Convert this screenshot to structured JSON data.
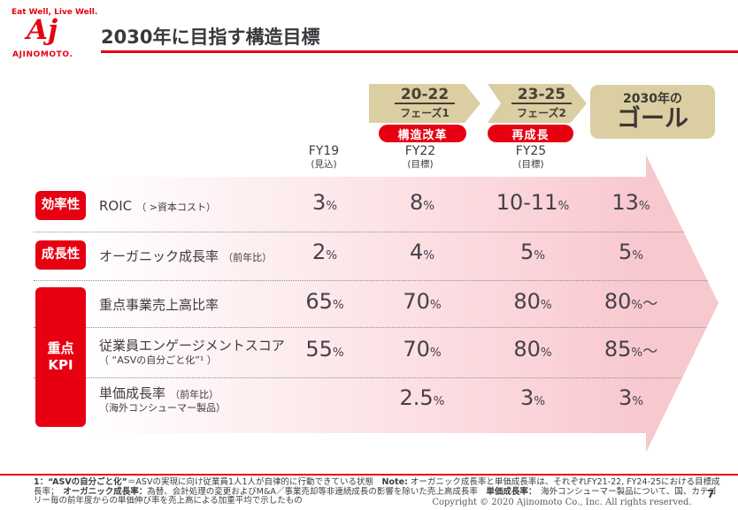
{
  "brand": {
    "tagline": "Eat Well, Live Well.",
    "logo_monogram": "Aj",
    "name": "AJINOMOTO.",
    "color": "#E60012"
  },
  "slide": {
    "title": "2030年に目指す構造目標",
    "page_number": "7"
  },
  "timeline": {
    "phase1": {
      "years": "20-22",
      "name": "フェーズ1",
      "badge": "構造改革"
    },
    "phase2": {
      "years": "23-25",
      "name": "フェーズ2",
      "badge": "再成長"
    },
    "goal": {
      "prefix": "2030年の",
      "label": "ゴール"
    }
  },
  "columns": [
    {
      "fy": "FY19",
      "qualifier": "(見込)"
    },
    {
      "fy": "FY22",
      "qualifier": "(目標)"
    },
    {
      "fy": "FY25",
      "qualifier": "(目標)"
    }
  ],
  "categories": [
    {
      "label": "効率性"
    },
    {
      "label": "成長性"
    },
    {
      "line1": "重点",
      "line2": "KPI"
    }
  ],
  "metrics": [
    {
      "name": "ROIC",
      "note": "（ >資本コスト）",
      "sub": "",
      "cells": [
        {
          "num": "3",
          "unit": "%",
          "tail": ""
        },
        {
          "num": "8",
          "unit": "%",
          "tail": ""
        },
        {
          "num": "10-11",
          "unit": "%",
          "tail": ""
        },
        {
          "num": "13",
          "unit": "%",
          "tail": ""
        }
      ]
    },
    {
      "name": "オーガニック成長率",
      "note": "（前年比）",
      "sub": "",
      "cells": [
        {
          "num": "2",
          "unit": "%",
          "tail": ""
        },
        {
          "num": "4",
          "unit": "%",
          "tail": ""
        },
        {
          "num": "5",
          "unit": "%",
          "tail": ""
        },
        {
          "num": "5",
          "unit": "%",
          "tail": ""
        }
      ]
    },
    {
      "name": "重点事業売上高比率",
      "note": "",
      "sub": "",
      "cells": [
        {
          "num": "65",
          "unit": "%",
          "tail": ""
        },
        {
          "num": "70",
          "unit": "%",
          "tail": ""
        },
        {
          "num": "80",
          "unit": "%",
          "tail": ""
        },
        {
          "num": "80",
          "unit": "%",
          "tail": "～"
        }
      ]
    },
    {
      "name": "従業員エンゲージメントスコア",
      "note": "",
      "sub": "（ “ASVの自分ごと化”¹ ）",
      "cells": [
        {
          "num": "55",
          "unit": "%",
          "tail": ""
        },
        {
          "num": "70",
          "unit": "%",
          "tail": ""
        },
        {
          "num": "80",
          "unit": "%",
          "tail": ""
        },
        {
          "num": "85",
          "unit": "%",
          "tail": "～"
        }
      ]
    },
    {
      "name": "単価成長率",
      "note": "（前年比）",
      "sub": "（海外コンシューマー製品）",
      "cells": [
        {
          "num": "",
          "unit": "",
          "tail": ""
        },
        {
          "num": "2.5",
          "unit": "%",
          "tail": ""
        },
        {
          "num": "3",
          "unit": "%",
          "tail": ""
        },
        {
          "num": "3",
          "unit": "%",
          "tail": ""
        }
      ]
    }
  ],
  "footer": {
    "notes": [
      {
        "segments": [
          {
            "t": "1：“ASVの自分ごと化”"
          },
          {
            "t": "＝ASVの実現に向け従業員1人1人が自律的に行動できている状態　"
          },
          {
            "t": "Note:"
          },
          {
            "t": " オーガニック成長率と単価成長率は、それぞれFY21-22, FY24-25における目標成"
          }
        ]
      },
      {
        "segments": [
          {
            "t": "長率；　"
          },
          {
            "t": "オーガニック成長率："
          },
          {
            "t": "為替、会計処理の変更およびM&A／事業売却等非連続成長の影響を除いた売上高成長率　"
          },
          {
            "t": "単価成長率："
          },
          {
            "t": "　海外コンシューマー製品について、国、カテゴ"
          }
        ]
      },
      {
        "segments": [
          {
            "t": "リー毎の前年度からの単価伸び率を売上高による加重平均で示したもの"
          }
        ]
      }
    ],
    "copyright": "Copyright © 2020 Ajinomoto Co., Inc. All rights reserved."
  }
}
